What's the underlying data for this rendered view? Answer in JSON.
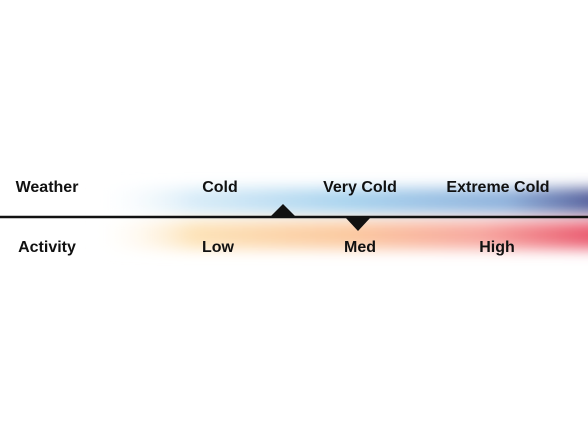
{
  "weather": {
    "label": "Weather",
    "levels": [
      "Cold",
      "Very Cold",
      "Extreme Cold"
    ]
  },
  "activity": {
    "label": "Activity",
    "levels": [
      "Low",
      "Med",
      "High"
    ]
  }
}
